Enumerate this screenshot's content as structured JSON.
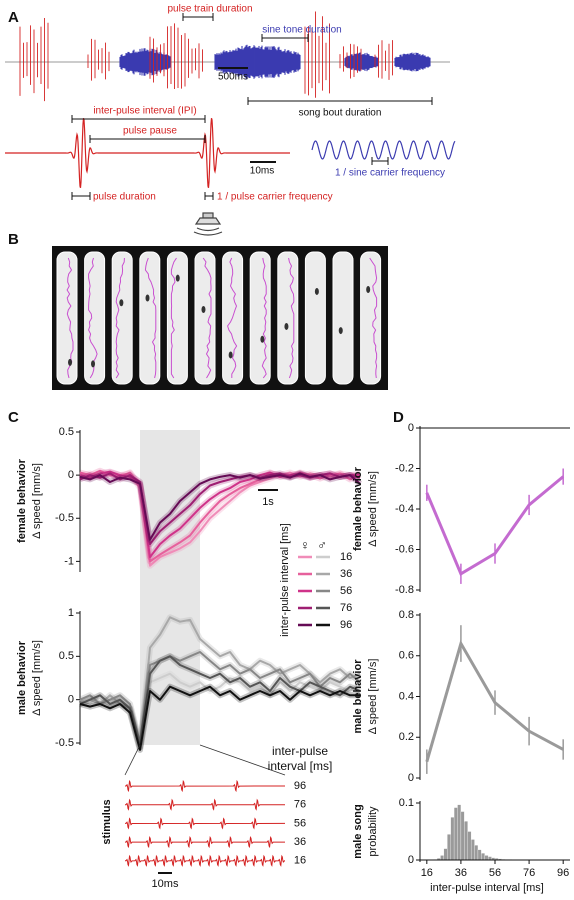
{
  "panel_labels": [
    "A",
    "B",
    "C",
    "D"
  ],
  "panel_a": {
    "annotations": {
      "pulse_train_duration": "pulse train duration",
      "sine_tone_duration": "sine tone duration",
      "scale_500": "500ms",
      "song_bout_duration": "song bout duration",
      "ipi": "inter-pulse interval (IPI)",
      "pulse_pause": "pulse pause",
      "scale_10": "10ms",
      "pulse_duration": "pulse duration",
      "pulse_carrier": "1 / pulse carrier frequency",
      "sine_carrier": "1 / sine carrier frequency"
    }
  },
  "stimulus_inset": {
    "label": "stimulus",
    "ipi_label": [
      "inter-pulse",
      "interval [ms]"
    ],
    "ipis": [
      96,
      76,
      56,
      36,
      16
    ],
    "scale_label": "10ms"
  },
  "chart_data": [
    {
      "type": "line",
      "ylabel": [
        "female behavior",
        "Δ speed [mm/s]"
      ],
      "x": [
        0,
        0.5,
        1,
        1.5,
        2,
        2.5,
        3,
        3.5,
        4,
        4.5,
        5,
        5.5,
        6,
        6.5,
        7,
        7.5,
        8,
        8.5,
        9,
        9.5,
        10,
        10.5,
        11,
        11.5,
        12,
        12.5,
        13,
        13.5,
        14
      ],
      "xlim": [
        0,
        14.5
      ],
      "ylim": [
        -1.1,
        0.5
      ],
      "yticks": [
        -1,
        -0.5,
        0,
        0.5
      ],
      "stimulus_span": [
        3,
        6
      ],
      "scale_bar": {
        "value": 1,
        "label": "1s"
      },
      "legend": {
        "title": "inter-pulse interval [ms]",
        "symbols": [
          "♀",
          "♂"
        ]
      },
      "series": [
        {
          "name": "16",
          "color": "#f08cb8",
          "values": [
            0,
            0.02,
            -0.02,
            0.03,
            0,
            0.02,
            -0.15,
            -1.05,
            -0.95,
            -0.9,
            -0.85,
            -0.78,
            -0.65,
            -0.5,
            -0.4,
            -0.3,
            -0.2,
            -0.12,
            -0.08,
            -0.04,
            0,
            0.03,
            -0.02,
            0.02,
            0,
            -0.03,
            0.02,
            0,
            -0.02
          ]
        },
        {
          "name": "36",
          "color": "#e6609c",
          "values": [
            0.03,
            0,
            0.05,
            0,
            -0.02,
            0.03,
            -0.12,
            -1,
            -0.92,
            -0.85,
            -0.78,
            -0.7,
            -0.55,
            -0.42,
            -0.3,
            -0.22,
            -0.15,
            -0.1,
            -0.05,
            0.02,
            0,
            -0.02,
            0.03,
            0,
            -0.04,
            0,
            0.02,
            -0.05,
            0
          ]
        },
        {
          "name": "56",
          "color": "#cf3389",
          "values": [
            0,
            -0.03,
            0.02,
            0.04,
            0,
            -0.02,
            -0.1,
            -0.95,
            -0.8,
            -0.7,
            -0.62,
            -0.5,
            -0.38,
            -0.28,
            -0.2,
            -0.15,
            -0.08,
            -0.05,
            0,
            0.03,
            -0.02,
            0,
            0.02,
            -0.03,
            0,
            0.02,
            -0.02,
            0,
            0.01
          ]
        },
        {
          "name": "76",
          "color": "#9e1f72",
          "values": [
            -0.05,
            0,
            -0.03,
            0.02,
            -0.05,
            0,
            -0.08,
            -0.8,
            -0.65,
            -0.55,
            -0.45,
            -0.35,
            -0.22,
            -0.12,
            -0.08,
            -0.05,
            -0.02,
            0,
            -0.03,
            0,
            0.02,
            -0.02,
            0,
            -0.03,
            0,
            0.02,
            -0.02,
            0,
            -0.03
          ]
        },
        {
          "name": "96",
          "color": "#650b55",
          "values": [
            -0.02,
            -0.05,
            0,
            -0.08,
            -0.03,
            -0.05,
            -0.1,
            -0.75,
            -0.55,
            -0.45,
            -0.3,
            -0.2,
            -0.1,
            -0.05,
            -0.02,
            0,
            -0.03,
            0,
            -0.04,
            -0.02,
            0,
            -0.03,
            0.02,
            -0.02,
            0,
            -0.05,
            -0.02,
            0,
            -0.1
          ]
        }
      ]
    },
    {
      "type": "line",
      "ylabel": [
        "male behavior",
        "Δ speed [mm/s]"
      ],
      "x": [
        0,
        0.5,
        1,
        1.5,
        2,
        2.5,
        3,
        3.5,
        4,
        4.5,
        5,
        5.5,
        6,
        6.5,
        7,
        7.5,
        8,
        8.5,
        9,
        9.5,
        10,
        10.5,
        11,
        11.5,
        12,
        12.5,
        13,
        13.5,
        14
      ],
      "xlim": [
        0,
        14.5
      ],
      "ylim": [
        -0.5,
        1
      ],
      "yticks": [
        -0.5,
        0,
        0.5,
        1
      ],
      "series": [
        {
          "color": "#cdcdcd",
          "values": [
            0,
            -0.05,
            0.05,
            -0.05,
            0,
            -0.1,
            -0.5,
            0.2,
            0.25,
            0.3,
            0.2,
            0.15,
            0.2,
            0.1,
            0.15,
            0.25,
            0.2,
            0.1,
            0.15,
            0.05,
            0.2,
            0.1,
            0.2,
            0.15,
            0.1,
            0.2,
            0.15,
            0.1,
            0.2
          ]
        },
        {
          "color": "#a8a8a8",
          "values": [
            -0.05,
            0,
            -0.05,
            0.05,
            -0.05,
            -0.1,
            -0.55,
            0.6,
            0.75,
            0.95,
            0.9,
            0.92,
            0.7,
            0.6,
            0.5,
            0.55,
            0.4,
            0.35,
            0.45,
            0.4,
            0.3,
            0.35,
            0.4,
            0.3,
            0.2,
            0.3,
            0.35,
            0.25,
            0.3
          ]
        },
        {
          "color": "#878787",
          "values": [
            0,
            0.05,
            -0.05,
            0,
            0.05,
            -0.05,
            -0.5,
            0.4,
            0.45,
            0.5,
            0.45,
            0.5,
            0.55,
            0.45,
            0.35,
            0.4,
            0.3,
            0.35,
            0.25,
            0.3,
            0.35,
            0.2,
            0.25,
            0.3,
            0.15,
            0.25,
            0.2,
            0.3,
            0.2
          ]
        },
        {
          "color": "#555555",
          "values": [
            -0.05,
            0,
            0.05,
            -0.05,
            0,
            -0.1,
            -0.55,
            0.3,
            0.45,
            0.5,
            0.4,
            0.35,
            0.3,
            0.25,
            0.3,
            0.2,
            0.25,
            0.15,
            0.2,
            0.1,
            0.25,
            0.15,
            0.1,
            0.2,
            0.15,
            0.1,
            0.05,
            0.15,
            0.1
          ]
        },
        {
          "color": "#111111",
          "values": [
            -0.05,
            -0.08,
            -0.05,
            -0.1,
            -0.05,
            -0.15,
            -0.58,
            0.1,
            0,
            0.15,
            0.1,
            0.05,
            0.1,
            0.15,
            0.05,
            0.1,
            0,
            0.05,
            0.1,
            0.05,
            0.1,
            0,
            0.1,
            0.05,
            0.1,
            0.05,
            0.1,
            0.05,
            0.05
          ]
        }
      ]
    },
    {
      "type": "line",
      "ylabel": [
        "female behavior",
        "Δ speed [mm/s]"
      ],
      "zero_line": true,
      "x": [
        16,
        36,
        56,
        76,
        96
      ],
      "xlim": [
        12,
        100
      ],
      "ylim": [
        -0.8,
        0
      ],
      "yticks": [
        -0.8,
        -0.6,
        -0.4,
        -0.2,
        0
      ],
      "color": "#c46bd0",
      "values": [
        -0.32,
        -0.72,
        -0.62,
        -0.38,
        -0.24
      ],
      "errors": [
        0.04,
        0.05,
        0.05,
        0.05,
        0.04
      ]
    },
    {
      "type": "line",
      "ylabel": [
        "male behavior",
        "Δ speed [mm/s]"
      ],
      "x": [
        16,
        36,
        56,
        76,
        96
      ],
      "xlim": [
        12,
        100
      ],
      "ylim": [
        0,
        0.8
      ],
      "yticks": [
        0,
        0.2,
        0.4,
        0.6,
        0.8
      ],
      "color": "#9a9a9a",
      "values": [
        0.08,
        0.66,
        0.37,
        0.23,
        0.14
      ],
      "errors": [
        0.06,
        0.09,
        0.06,
        0.07,
        0.05
      ]
    },
    {
      "type": "histogram",
      "ylabel": [
        "male song",
        "probability"
      ],
      "xlabel": "inter-pulse interval [ms]",
      "bins": [
        20,
        22,
        24,
        26,
        28,
        30,
        32,
        34,
        36,
        38,
        40,
        42,
        44,
        46,
        48,
        50,
        52,
        54,
        56,
        58,
        60,
        62,
        64,
        66,
        68,
        70
      ],
      "values": [
        0.001,
        0.003,
        0.008,
        0.02,
        0.045,
        0.075,
        0.092,
        0.097,
        0.085,
        0.068,
        0.05,
        0.036,
        0.026,
        0.018,
        0.012,
        0.008,
        0.006,
        0.004,
        0.003,
        0.002,
        0.0015,
        0.001,
        0.001,
        0.0005,
        0.0005
      ],
      "color": "#9a9a9a",
      "xlim": [
        12,
        100
      ],
      "ylim": [
        0,
        0.1
      ],
      "yticks": [
        0,
        0.1
      ],
      "xticks": [
        16,
        36,
        56,
        76,
        96
      ]
    }
  ]
}
